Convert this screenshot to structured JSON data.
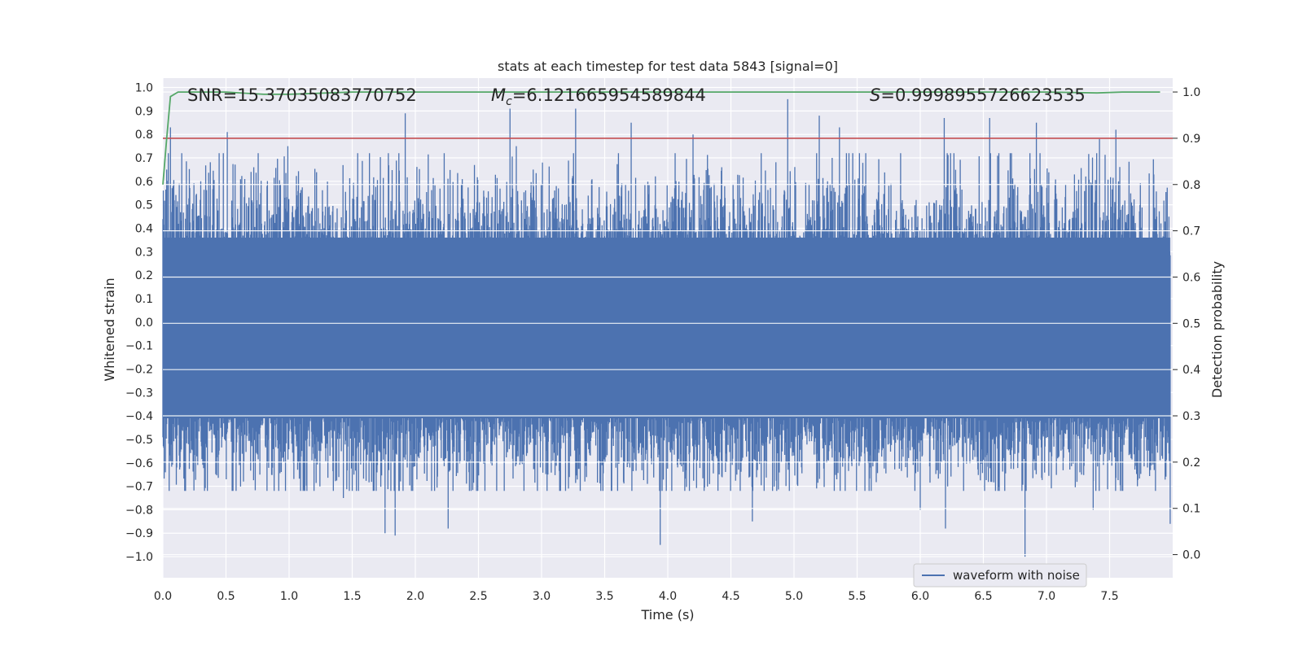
{
  "chart_data": {
    "type": "line",
    "title": "stats at each timestep for test data 5843 [signal=0]",
    "xlabel": "Time (s)",
    "ylabel": "Whitened strain",
    "ylabel_right": "Detection probability",
    "xlim": [
      0.0,
      8.0
    ],
    "ylim": [
      -1.09,
      1.04
    ],
    "ylim_right": [
      -0.05,
      1.03
    ],
    "xticks": [
      "0.0",
      "0.5",
      "1.0",
      "1.5",
      "2.0",
      "2.5",
      "3.0",
      "3.5",
      "4.0",
      "4.5",
      "5.0",
      "5.5",
      "6.0",
      "6.5",
      "7.0",
      "7.5"
    ],
    "yticks": [
      "1.0",
      "0.9",
      "0.8",
      "0.7",
      "0.6",
      "0.5",
      "0.4",
      "0.3",
      "0.2",
      "0.1",
      "0.0",
      "−0.1",
      "−0.2",
      "−0.3",
      "−0.4",
      "−0.5",
      "−0.6",
      "−0.7",
      "−0.8",
      "−0.9",
      "−1.0"
    ],
    "yticks_right": [
      "0.0",
      "0.1",
      "0.2",
      "0.3",
      "0.4",
      "0.5",
      "0.6",
      "0.7",
      "0.8",
      "0.9",
      "1.0"
    ],
    "annotations": {
      "snr": "SNR=15.37035083770752",
      "mc_symbol": "M",
      "mc_sub": "c",
      "mc_value": "=6.121665954589844",
      "s_symbol": "S",
      "s_value": "=0.9998955726623535"
    },
    "legend": {
      "label": "waveform with noise",
      "position": "lower-right"
    },
    "colors": {
      "waveform": "#4c72b0",
      "probability": "#55a868",
      "threshold": "#c44e52",
      "background": "#eaeaf2",
      "grid": "#ffffff"
    },
    "series": [
      {
        "name": "waveform with noise",
        "axis": "left",
        "duration_s": 7.98,
        "core_envelope": [
          -0.41,
          0.36
        ],
        "peaks_x": [
          0.03,
          0.06,
          0.3,
          0.51,
          0.72,
          0.99,
          1.92,
          2.75,
          2.8,
          3.27,
          3.71,
          4.2,
          4.95,
          5.2,
          5.36,
          6.19,
          6.55,
          6.92,
          7.42,
          7.55
        ],
        "peaks_y": [
          0.65,
          0.83,
          0.6,
          0.81,
          0.66,
          0.75,
          0.89,
          0.91,
          0.75,
          0.91,
          0.85,
          0.8,
          0.95,
          0.88,
          0.83,
          0.87,
          0.87,
          0.85,
          0.78,
          0.82
        ],
        "troughs_x": [
          0.33,
          0.58,
          1.43,
          1.76,
          1.84,
          2.26,
          3.94,
          4.67,
          6.0,
          6.2,
          6.83,
          7.37,
          7.98
        ],
        "troughs_y": [
          -0.72,
          -0.72,
          -0.75,
          -0.9,
          -0.91,
          -0.88,
          -0.95,
          -0.85,
          -0.8,
          -0.88,
          -1.0,
          -0.8,
          -0.86
        ]
      },
      {
        "name": "detection probability",
        "axis": "right",
        "x": [
          0.0,
          0.03,
          0.06,
          0.12,
          0.5,
          0.8,
          1.0,
          1.5,
          2.0,
          3.0,
          4.0,
          5.0,
          6.0,
          7.0,
          7.2,
          7.4,
          7.6,
          7.9
        ],
        "y": [
          0.8,
          0.9,
          0.99,
          1.0,
          1.0,
          0.995,
          0.995,
          1.0,
          1.0,
          1.0,
          1.0,
          1.0,
          1.0,
          1.0,
          0.999,
          0.998,
          1.0,
          1.0
        ]
      },
      {
        "name": "threshold",
        "axis": "right",
        "x": [
          0.0,
          8.0
        ],
        "y": [
          0.9,
          0.9
        ]
      }
    ]
  }
}
